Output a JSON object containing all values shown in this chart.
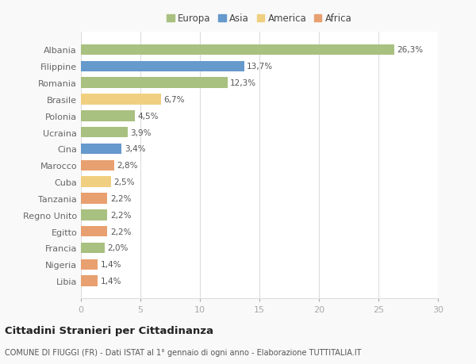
{
  "categories": [
    "Albania",
    "Filippine",
    "Romania",
    "Brasile",
    "Polonia",
    "Ucraina",
    "Cina",
    "Marocco",
    "Cuba",
    "Tanzania",
    "Regno Unito",
    "Egitto",
    "Francia",
    "Nigeria",
    "Libia"
  ],
  "values": [
    26.3,
    13.7,
    12.3,
    6.7,
    4.5,
    3.9,
    3.4,
    2.8,
    2.5,
    2.2,
    2.2,
    2.2,
    2.0,
    1.4,
    1.4
  ],
  "labels": [
    "26,3%",
    "13,7%",
    "12,3%",
    "6,7%",
    "4,5%",
    "3,9%",
    "3,4%",
    "2,8%",
    "2,5%",
    "2,2%",
    "2,2%",
    "2,2%",
    "2,0%",
    "1,4%",
    "1,4%"
  ],
  "continent": [
    "Europa",
    "Asia",
    "Europa",
    "America",
    "Europa",
    "Europa",
    "Asia",
    "Africa",
    "America",
    "Africa",
    "Europa",
    "Africa",
    "Europa",
    "Africa",
    "Africa"
  ],
  "colors": {
    "Europa": "#a8c080",
    "Asia": "#6699cc",
    "America": "#f0d080",
    "Africa": "#e8a070"
  },
  "legend_order": [
    "Europa",
    "Asia",
    "America",
    "Africa"
  ],
  "xlim": [
    0,
    30
  ],
  "xticks": [
    0,
    5,
    10,
    15,
    20,
    25,
    30
  ],
  "title": "Cittadini Stranieri per Cittadinanza",
  "subtitle": "COMUNE DI FIUGGI (FR) - Dati ISTAT al 1° gennaio di ogni anno - Elaborazione TUTTITALIA.IT",
  "background_color": "#f9f9f9",
  "bar_background": "#ffffff",
  "grid_color": "#dddddd"
}
